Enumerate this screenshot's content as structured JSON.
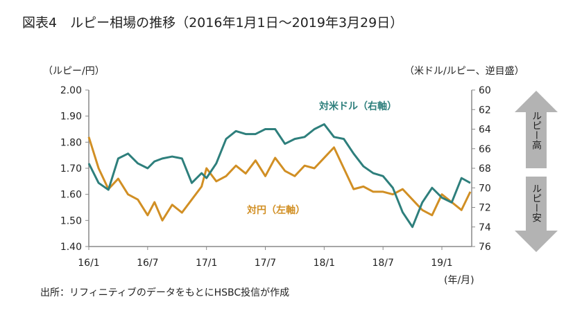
{
  "title": "図表4　ルピー相場の推移（2016年1月1日～2019年3月29日）",
  "source": "出所：リフィニティブのデータをもとにHSBC投信が作成",
  "chart_data": {
    "type": "line",
    "left_label": "（ルピー/円）",
    "right_label": "（米ドル/ルピー、逆目盛）",
    "x_unit_label": "(年/月)",
    "x_ticks": [
      "16/1",
      "16/7",
      "17/1",
      "17/7",
      "18/1",
      "18/7",
      "19/1"
    ],
    "y_left": {
      "range": [
        1.4,
        2.0
      ],
      "ticks": [
        "1.40",
        "1.50",
        "1.60",
        "1.70",
        "1.80",
        "1.90",
        "2.00"
      ]
    },
    "y_right": {
      "range": [
        60,
        76
      ],
      "inverted": true,
      "ticks": [
        "60",
        "62",
        "64",
        "66",
        "68",
        "70",
        "72",
        "74",
        "76"
      ]
    },
    "x_months": [
      0,
      1,
      2,
      3,
      4,
      5,
      6,
      6.7,
      7.5,
      8.5,
      9.5,
      10.5,
      11.5,
      12,
      13,
      14,
      15,
      16,
      17,
      18,
      19,
      20,
      21,
      22,
      23,
      24,
      25,
      26,
      27,
      28,
      29,
      30,
      31,
      32,
      33,
      34,
      35,
      36,
      37,
      38,
      38.9
    ],
    "series": [
      {
        "name": "対円（左軸）",
        "axis": "left",
        "color": "#d18f24",
        "values": [
          1.82,
          1.7,
          1.62,
          1.66,
          1.6,
          1.58,
          1.52,
          1.57,
          1.5,
          1.56,
          1.53,
          1.58,
          1.63,
          1.7,
          1.65,
          1.67,
          1.71,
          1.68,
          1.73,
          1.67,
          1.74,
          1.69,
          1.67,
          1.71,
          1.7,
          1.74,
          1.78,
          1.7,
          1.62,
          1.63,
          1.61,
          1.61,
          1.6,
          1.62,
          1.58,
          1.54,
          1.52,
          1.6,
          1.57,
          1.54,
          1.61
        ]
      },
      {
        "name": "対米ドル（右軸）",
        "axis": "right",
        "color": "#2e7f7c",
        "values": [
          67.5,
          69.5,
          70.2,
          67,
          66.5,
          67.5,
          68,
          67.3,
          67,
          66.8,
          67,
          69.5,
          68.5,
          69,
          67.5,
          65,
          64.2,
          64.5,
          64.5,
          64,
          64,
          65.5,
          65,
          64.8,
          64,
          63.5,
          64.8,
          65,
          66.5,
          67.8,
          68.5,
          68.8,
          70,
          72.5,
          74,
          71.5,
          70,
          71,
          71.5,
          69,
          69.5
        ]
      }
    ],
    "annotations": {
      "usd_label": "対米ドル（右軸）",
      "jpy_label": "対円（左軸）",
      "up_label": "ルピー高",
      "down_label": "ルピー安"
    }
  }
}
